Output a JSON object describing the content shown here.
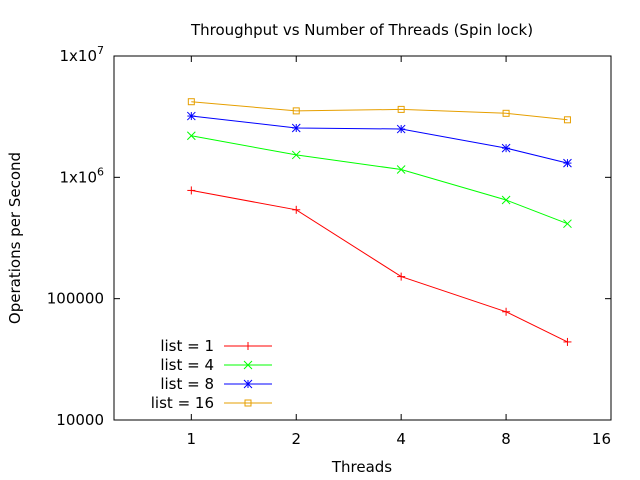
{
  "chart_data": {
    "type": "line",
    "title": "Throughput vs Number of Threads (Spin lock)",
    "xlabel": "Threads",
    "ylabel": "Operations per Second",
    "x_scale": "log2",
    "y_scale": "log10",
    "xlim": [
      0.6,
      16
    ],
    "ylim": [
      10000,
      10000000
    ],
    "x_ticks": [
      1,
      2,
      4,
      8,
      16
    ],
    "x_tick_labels": [
      "1",
      "2",
      "4",
      "8",
      "16"
    ],
    "y_ticks": [
      10000,
      100000,
      1000000,
      10000000
    ],
    "y_tick_labels": [
      {
        "base": "10000",
        "exp": ""
      },
      {
        "base": "100000",
        "exp": ""
      },
      {
        "base": "1x10",
        "exp": "6"
      },
      {
        "base": "1x10",
        "exp": "7"
      }
    ],
    "grid": false,
    "legend_position": "bottom-left",
    "x": [
      1,
      2,
      4,
      8,
      12
    ],
    "series": [
      {
        "name": "list = 1",
        "color": "#ff0000",
        "marker": "plus",
        "values": [
          780000,
          540000,
          152000,
          78000,
          44000
        ]
      },
      {
        "name": "list = 4",
        "color": "#00ff00",
        "marker": "x",
        "values": [
          2200000,
          1530000,
          1160000,
          650000,
          415000
        ]
      },
      {
        "name": "list = 8",
        "color": "#0000ff",
        "marker": "star",
        "values": [
          3200000,
          2550000,
          2500000,
          1740000,
          1310000
        ]
      },
      {
        "name": "list = 16",
        "color": "#e69f00",
        "marker": "square",
        "values": [
          4200000,
          3530000,
          3630000,
          3370000,
          2980000
        ]
      }
    ]
  }
}
